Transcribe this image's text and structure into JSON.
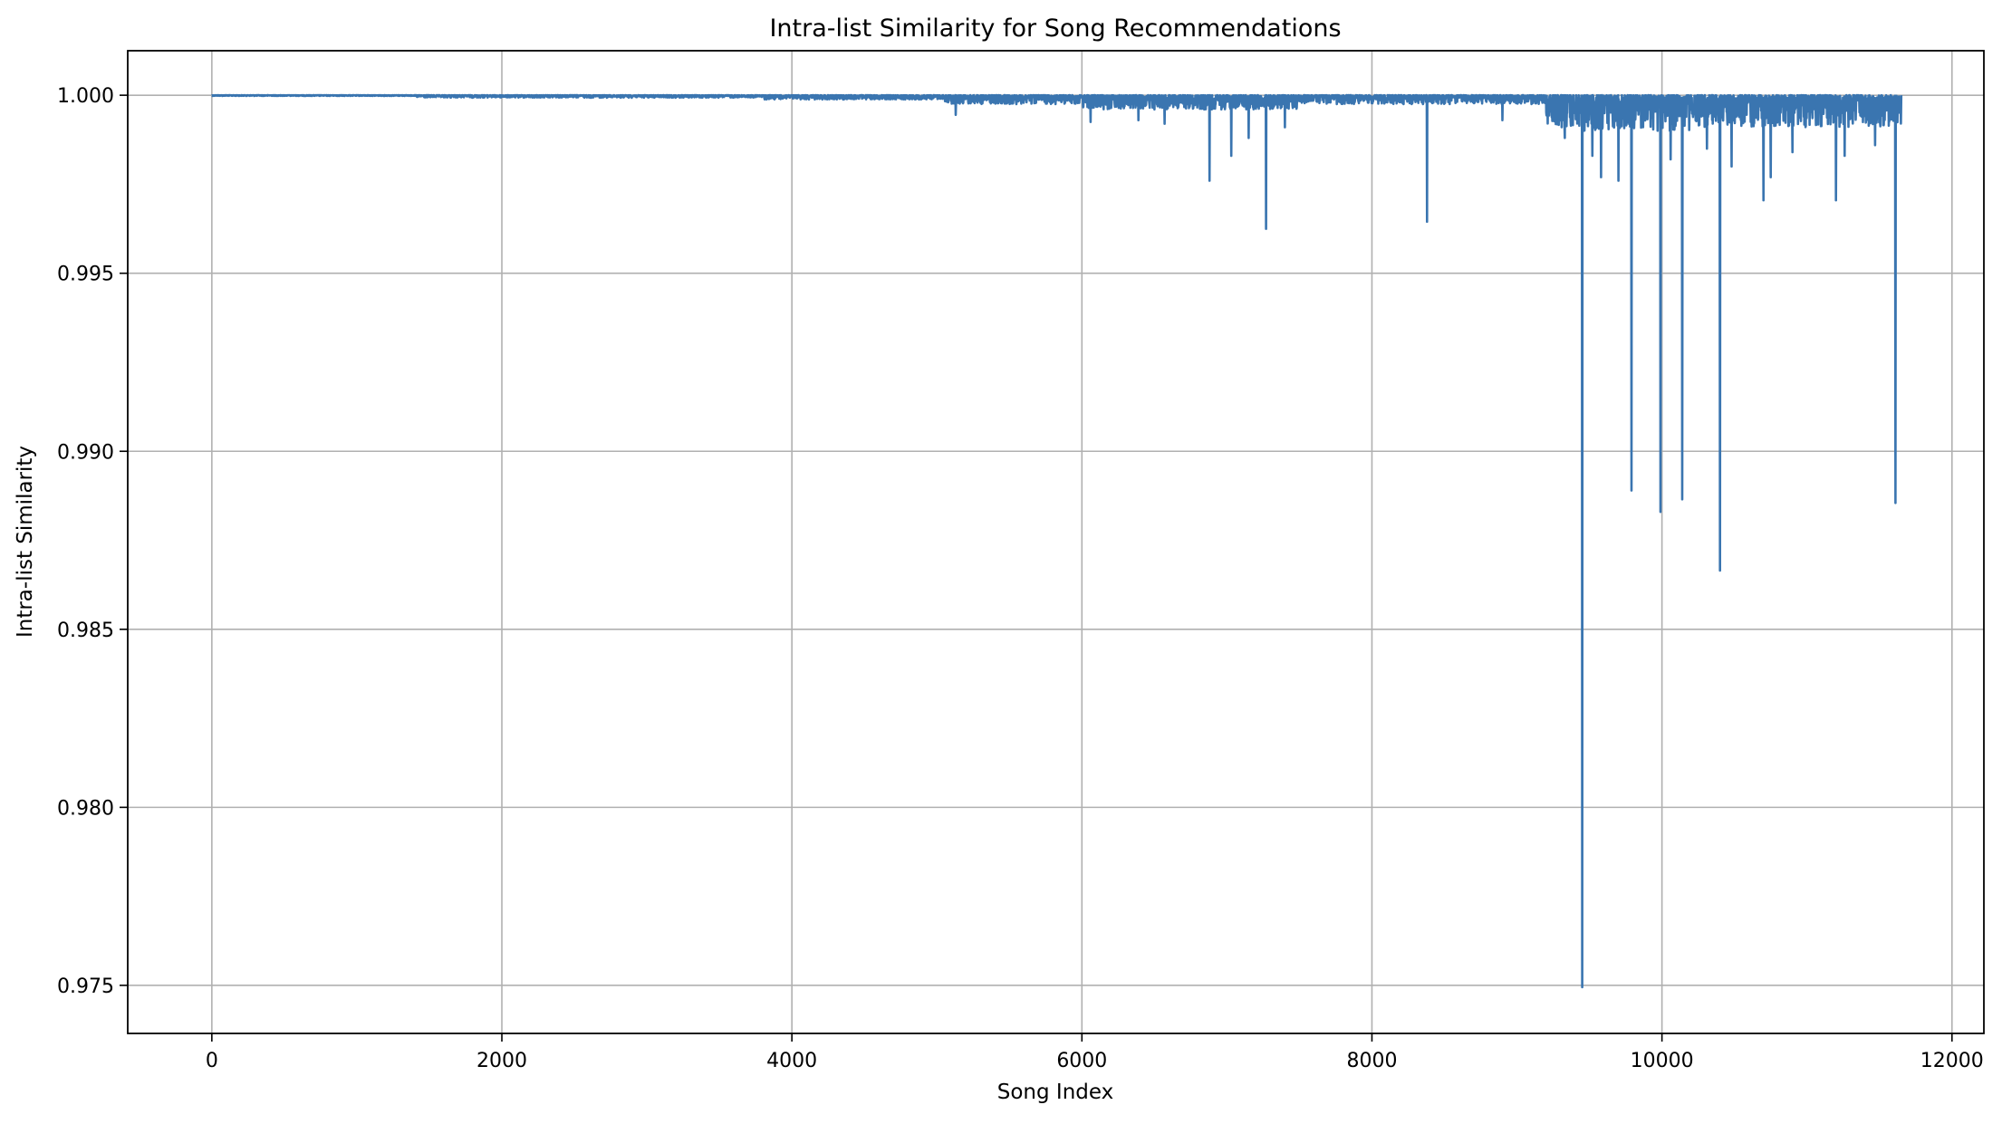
{
  "chart_data": {
    "type": "line",
    "title": "Intra-list Similarity for Song Recommendations",
    "xlabel": "Song Index",
    "ylabel": "Intra-list Similarity",
    "xlim": [
      -580,
      12220
    ],
    "ylim": [
      0.97365,
      1.00125
    ],
    "xticks": [
      0,
      2000,
      4000,
      6000,
      8000,
      10000,
      12000
    ],
    "xtick_labels": [
      "0",
      "2000",
      "4000",
      "6000",
      "8000",
      "10000",
      "12000"
    ],
    "yticks": [
      0.975,
      0.98,
      0.985,
      0.99,
      0.995,
      1.0
    ],
    "ytick_labels": [
      "0.975",
      "0.980",
      "0.985",
      "0.990",
      "0.995",
      "1.000"
    ],
    "grid": true,
    "series": [
      {
        "color": "#3a75b0",
        "baseline": 1.0,
        "x_range": [
          0,
          11650
        ],
        "noise_bands": [
          {
            "x": [
              0,
              1400
            ],
            "min": 0.99998
          },
          {
            "x": [
              1400,
              3800
            ],
            "min": 0.99993
          },
          {
            "x": [
              3800,
              5050
            ],
            "min": 0.99988
          },
          {
            "x": [
              5050,
              6000
            ],
            "min": 0.99975
          },
          {
            "x": [
              6000,
              7500
            ],
            "min": 0.9996
          },
          {
            "x": [
              7500,
              9200
            ],
            "min": 0.99975
          },
          {
            "x": [
              9200,
              10200
            ],
            "min": 0.999
          },
          {
            "x": [
              10200,
              11650
            ],
            "min": 0.9991
          }
        ],
        "spikes": [
          {
            "x": 5130,
            "y": 0.99945
          },
          {
            "x": 6060,
            "y": 0.99925
          },
          {
            "x": 6390,
            "y": 0.9993
          },
          {
            "x": 6570,
            "y": 0.9992
          },
          {
            "x": 6880,
            "y": 0.9976
          },
          {
            "x": 7030,
            "y": 0.9983
          },
          {
            "x": 7150,
            "y": 0.9988
          },
          {
            "x": 7270,
            "y": 0.99625
          },
          {
            "x": 7400,
            "y": 0.9991
          },
          {
            "x": 8380,
            "y": 0.99645
          },
          {
            "x": 8900,
            "y": 0.9993
          },
          {
            "x": 9330,
            "y": 0.9988
          },
          {
            "x": 9450,
            "y": 0.97495
          },
          {
            "x": 9520,
            "y": 0.9983
          },
          {
            "x": 9580,
            "y": 0.9977
          },
          {
            "x": 9700,
            "y": 0.9976
          },
          {
            "x": 9790,
            "y": 0.9889
          },
          {
            "x": 9990,
            "y": 0.9883
          },
          {
            "x": 10060,
            "y": 0.9982
          },
          {
            "x": 10140,
            "y": 0.98865
          },
          {
            "x": 10310,
            "y": 0.9985
          },
          {
            "x": 10400,
            "y": 0.98665
          },
          {
            "x": 10480,
            "y": 0.998
          },
          {
            "x": 10700,
            "y": 0.99705
          },
          {
            "x": 10750,
            "y": 0.9977
          },
          {
            "x": 10900,
            "y": 0.9984
          },
          {
            "x": 11200,
            "y": 0.99705
          },
          {
            "x": 11260,
            "y": 0.9983
          },
          {
            "x": 11470,
            "y": 0.9986
          },
          {
            "x": 11610,
            "y": 0.98855
          }
        ]
      }
    ]
  }
}
